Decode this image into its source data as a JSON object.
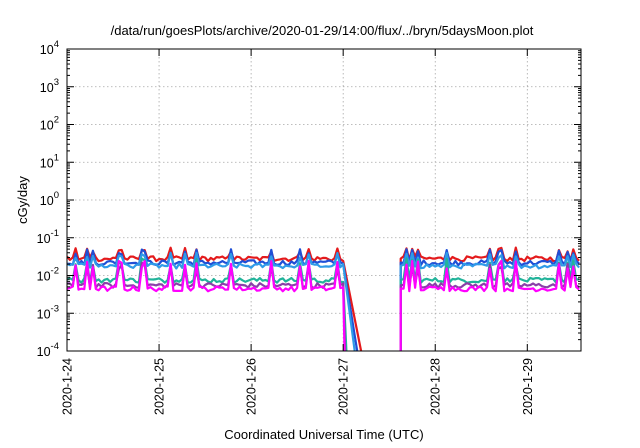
{
  "chart_data": {
    "type": "line",
    "title": "/data/run/goesPlots/archive/2020-01-29/14:00/flux/../bryn/5daysMoon.plot",
    "xlabel": "Coordinated Universal Time (UTC)",
    "ylabel": "cGy/day",
    "xscale": "time",
    "yscale": "log",
    "xlim": [
      "2020-01-24T00:00",
      "2020-01-29T14:00"
    ],
    "ylim": [
      0.0001,
      10000
    ],
    "grid": true,
    "x_ticks": [
      "2020-1-24",
      "2020-1-25",
      "2020-1-26",
      "2020-1-27",
      "2020-1-28",
      "2020-1-29"
    ],
    "y_ticks": [
      {
        "value": 0.0001,
        "base": "10",
        "exp": "-4"
      },
      {
        "value": 0.001,
        "base": "10",
        "exp": "-3"
      },
      {
        "value": 0.01,
        "base": "10",
        "exp": "-2"
      },
      {
        "value": 0.1,
        "base": "10",
        "exp": "-1"
      },
      {
        "value": 1,
        "base": "10",
        "exp": "0"
      },
      {
        "value": 10,
        "base": "10",
        "exp": "1"
      },
      {
        "value": 100,
        "base": "10",
        "exp": "2"
      },
      {
        "value": 1000,
        "base": "10",
        "exp": "3"
      },
      {
        "value": 10000,
        "base": "10",
        "exp": "4"
      }
    ],
    "gap": [
      "2020-01-27T00:00",
      "2020-01-27T15:00"
    ],
    "series": [
      {
        "color": "#e41a1c",
        "baseline": 0.028,
        "spike": 0.055,
        "decay_end": [
          "2020-01-27T04:40",
          0.0001
        ],
        "resume": [
          "2020-01-27T15:00",
          0.028
        ]
      },
      {
        "color": "#1f4fd6",
        "baseline": 0.022,
        "spike": 0.05,
        "decay_end": [
          "2020-01-27T03:40",
          0.0001
        ],
        "resume": [
          "2020-01-27T15:00",
          0.022
        ]
      },
      {
        "color": "#2f9be8",
        "baseline": 0.018,
        "spike": 0.04,
        "decay_end": [
          "2020-01-27T03:00",
          0.0001
        ],
        "resume": [
          "2020-01-27T15:00",
          0.018
        ]
      },
      {
        "color": "#22b39a",
        "baseline": 0.0075,
        "spike": 0.03,
        "decay_end": [
          "2020-01-27T00:50",
          0.0001
        ],
        "resume": [
          "2020-01-27T15:00",
          0.0075
        ]
      },
      {
        "color": "#8a3fa8",
        "baseline": 0.0055,
        "spike": 0.022,
        "decay_end": [
          "2020-01-27T00:30",
          0.0001
        ],
        "resume": [
          "2020-01-27T15:00",
          0.0055
        ]
      },
      {
        "color": "#ff00ff",
        "baseline": 0.0045,
        "spike": 0.025,
        "decay_end": [
          "2020-01-27T00:20",
          0.0001
        ],
        "resume": [
          "2020-01-27T15:00",
          0.0045
        ]
      }
    ]
  }
}
